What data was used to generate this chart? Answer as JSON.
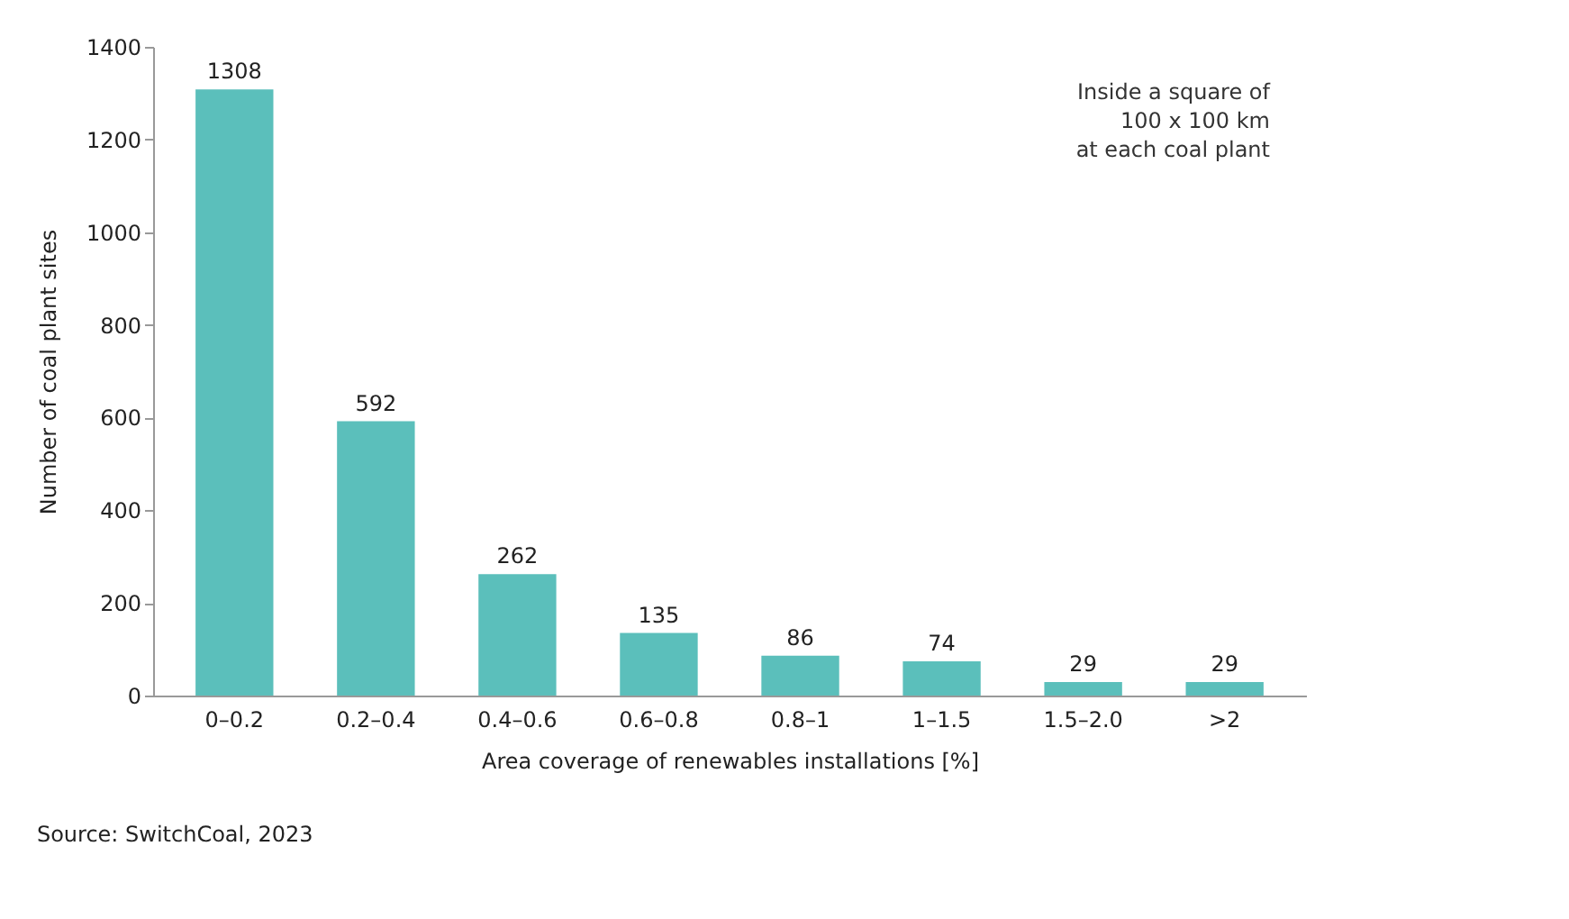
{
  "chart_data": {
    "type": "bar",
    "xlabel": "Area coverage of renewables installations [%]",
    "ylabel": "Number of coal plant sites",
    "categories": [
      "0–0.2",
      "0.2–0.4",
      "0.4–0.6",
      "0.6–0.8",
      "0.8–1",
      "1–1.5",
      "1.5–2.0",
      ">2"
    ],
    "values": [
      1308,
      592,
      262,
      135,
      86,
      74,
      29,
      29
    ],
    "color": "#5bbfbb",
    "ylim": [
      0,
      1400
    ],
    "yticks": [
      0,
      200,
      400,
      600,
      800,
      1000,
      1200,
      1400
    ],
    "grid": false,
    "data_labels": true,
    "annotations": [
      "Inside a square of\n100 x 100 km\nat each coal plant",
      "Source: SwitchCoal, 2023"
    ]
  }
}
